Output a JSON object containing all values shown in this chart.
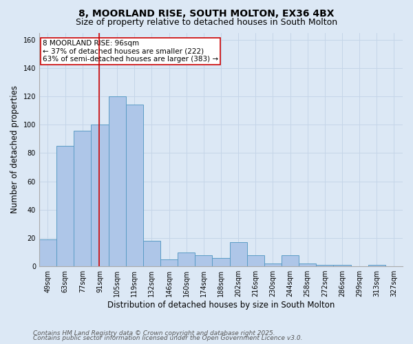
{
  "title1": "8, MOORLAND RISE, SOUTH MOLTON, EX36 4BX",
  "title2": "Size of property relative to detached houses in South Molton",
  "xlabel": "Distribution of detached houses by size in South Molton",
  "ylabel": "Number of detached properties",
  "categories": [
    "49sqm",
    "63sqm",
    "77sqm",
    "91sqm",
    "105sqm",
    "119sqm",
    "132sqm",
    "146sqm",
    "160sqm",
    "174sqm",
    "188sqm",
    "202sqm",
    "216sqm",
    "230sqm",
    "244sqm",
    "258sqm",
    "272sqm",
    "286sqm",
    "299sqm",
    "313sqm",
    "327sqm"
  ],
  "values": [
    19,
    85,
    96,
    100,
    120,
    114,
    18,
    5,
    10,
    8,
    6,
    17,
    8,
    2,
    8,
    2,
    1,
    1,
    0,
    1,
    0
  ],
  "bar_color": "#aec6e8",
  "bar_edge_color": "#5a9cc5",
  "vline_x": 2.97,
  "vline_color": "#cc0000",
  "annotation_text": "8 MOORLAND RISE: 96sqm\n← 37% of detached houses are smaller (222)\n63% of semi-detached houses are larger (383) →",
  "annotation_box_color": "white",
  "annotation_box_edge": "#cc0000",
  "ylim": [
    0,
    165
  ],
  "yticks": [
    0,
    20,
    40,
    60,
    80,
    100,
    120,
    140,
    160
  ],
  "grid_color": "#c5d5e8",
  "background_color": "#dce8f5",
  "footer1": "Contains HM Land Registry data © Crown copyright and database right 2025.",
  "footer2": "Contains public sector information licensed under the Open Government Licence v3.0.",
  "title_fontsize": 10,
  "subtitle_fontsize": 9,
  "axis_label_fontsize": 8.5,
  "tick_fontsize": 7,
  "footer_fontsize": 6.5,
  "annotation_fontsize": 7.5
}
